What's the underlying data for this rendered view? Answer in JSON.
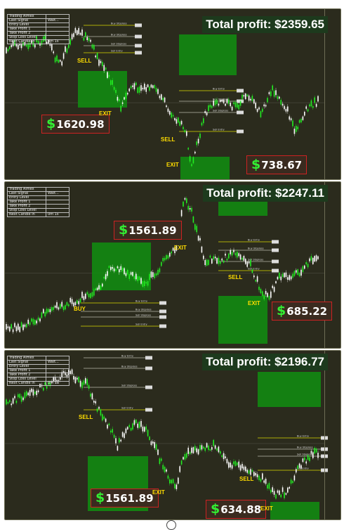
{
  "info_table": {
    "rows": [
      {
        "label": "Trading Aimex",
        "value": ""
      },
      {
        "label": "Last Signal",
        "value": "Wait..."
      },
      {
        "label": "Entry Level",
        "value": ""
      },
      {
        "label": "Take Profit 1",
        "value": ""
      },
      {
        "label": "Take Profit 2",
        "value": ""
      },
      {
        "label": "Stop Loss Level",
        "value": ""
      },
      {
        "label": "Next Candle In",
        "value": "0m 1s"
      }
    ]
  },
  "panels": [
    {
      "total_profit": "Total profit: $2359.65",
      "trades": [
        {
          "signal": "SELL",
          "exit": "EXIT",
          "profit": "1620.98"
        },
        {
          "signal": "SELL",
          "exit": "EXIT",
          "profit": "738.67"
        }
      ],
      "level_labels": [
        "Buy Stoploss",
        "Sell Stoploss",
        "Sell Entry",
        "Buy Entry"
      ]
    },
    {
      "total_profit": "Total profit: $2247.11",
      "trades": [
        {
          "signal": "BUY",
          "exit": "EXIT",
          "profit": "1561.89"
        },
        {
          "signal": "SELL",
          "exit": "EXIT",
          "profit": "685.22"
        }
      ],
      "level_labels": [
        "Buy Entry",
        "Buy Stoploss",
        "Sell Stoploss",
        "Sell Entry"
      ]
    },
    {
      "total_profit": "Total profit: $2196.77",
      "trades": [
        {
          "signal": "SELL",
          "exit": "EXIT",
          "profit": "1561.89"
        },
        {
          "signal": "SELL",
          "exit": "EXIT",
          "profit": "634.88"
        }
      ],
      "level_labels": [
        "Buy Entry",
        "Buy Stoploss",
        "Sell Stoploss",
        "Sell Entry"
      ]
    }
  ],
  "colors": {
    "background": "#2b2b1d",
    "bull_candle": "#22ee22",
    "bear_candle": "#ffffff",
    "profit_zone": "#128a12",
    "level_line": "#d8d800",
    "signal_text": "#ffdd00",
    "dollar_sign": "#33ee33",
    "profit_border": "#cc2222"
  }
}
